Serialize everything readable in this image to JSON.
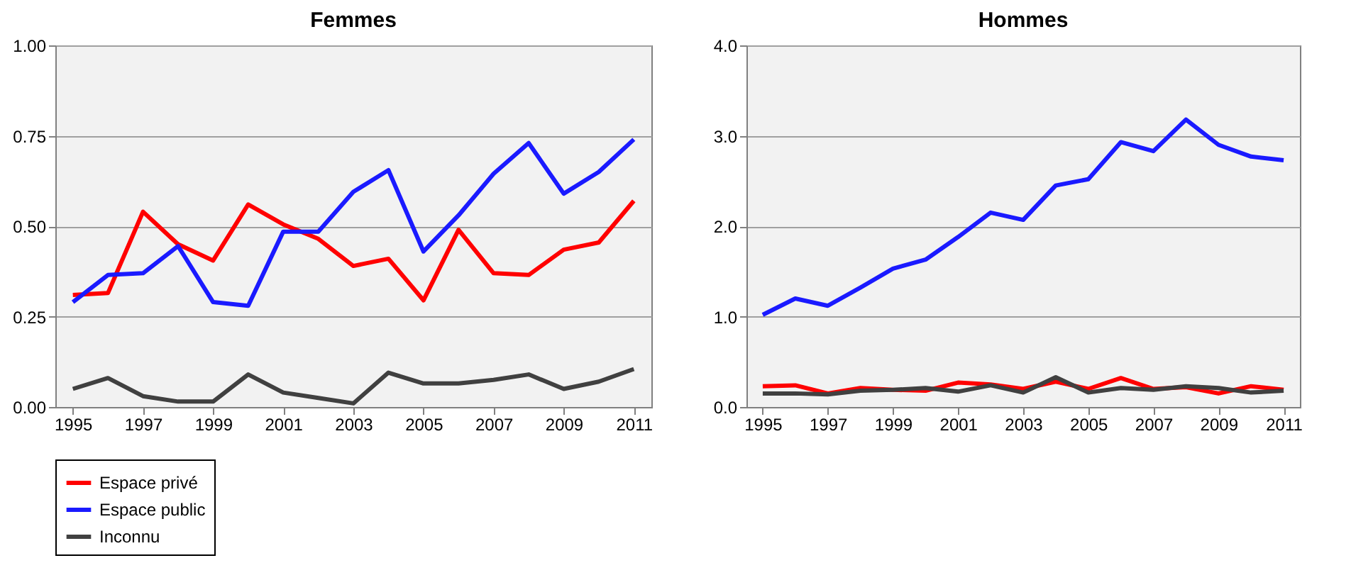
{
  "chart_data": [
    {
      "type": "line",
      "title": "Femmes",
      "x": [
        1995,
        1996,
        1997,
        1998,
        1999,
        2000,
        2001,
        2002,
        2003,
        2004,
        2005,
        2006,
        2007,
        2008,
        2009,
        2010,
        2011
      ],
      "xlim": [
        1994.5,
        2011.5
      ],
      "xticks": [
        1995,
        1997,
        1999,
        2001,
        2003,
        2005,
        2007,
        2009,
        2011
      ],
      "ylim": [
        0,
        1
      ],
      "yticks": [
        {
          "value": 0,
          "label": "0.00"
        },
        {
          "value": 0.25,
          "label": "0.25"
        },
        {
          "value": 0.5,
          "label": "0.50"
        },
        {
          "value": 0.75,
          "label": "0.75"
        },
        {
          "value": 1,
          "label": "1.00"
        }
      ],
      "grid": "y",
      "legend": "bottom",
      "series": [
        {
          "name": "Espace privé",
          "color": "#ff0000",
          "values": [
            0.31,
            0.315,
            0.54,
            0.45,
            0.405,
            0.56,
            0.505,
            0.465,
            0.39,
            0.41,
            0.295,
            0.49,
            0.37,
            0.365,
            0.435,
            0.455,
            0.57
          ]
        },
        {
          "name": "Espace public",
          "color": "#1a1aff",
          "values": [
            0.29,
            0.365,
            0.37,
            0.445,
            0.29,
            0.28,
            0.485,
            0.485,
            0.595,
            0.655,
            0.43,
            0.53,
            0.645,
            0.73,
            0.59,
            0.65,
            0.74
          ]
        },
        {
          "name": "Inconnu",
          "color": "#404040",
          "values": [
            0.05,
            0.08,
            0.03,
            0.015,
            0.015,
            0.09,
            0.04,
            0.025,
            0.01,
            0.095,
            0.065,
            0.065,
            0.075,
            0.09,
            0.05,
            0.07,
            0.105
          ]
        }
      ]
    },
    {
      "type": "line",
      "title": "Hommes",
      "x": [
        1995,
        1996,
        1997,
        1998,
        1999,
        2000,
        2001,
        2002,
        2003,
        2004,
        2005,
        2006,
        2007,
        2008,
        2009,
        2010,
        2011
      ],
      "xlim": [
        1994.5,
        2011.5
      ],
      "xticks": [
        1995,
        1997,
        1999,
        2001,
        2003,
        2005,
        2007,
        2009,
        2011
      ],
      "ylim": [
        0,
        4
      ],
      "yticks": [
        {
          "value": 0,
          "label": "0.0"
        },
        {
          "value": 1,
          "label": "1.0"
        },
        {
          "value": 2,
          "label": "2.0"
        },
        {
          "value": 3,
          "label": "3.0"
        },
        {
          "value": 4,
          "label": "4.0"
        }
      ],
      "grid": "y",
      "series": [
        {
          "color": "#ff0000",
          "values": [
            0.23,
            0.24,
            0.15,
            0.21,
            0.19,
            0.18,
            0.27,
            0.25,
            0.2,
            0.28,
            0.2,
            0.32,
            0.2,
            0.22,
            0.15,
            0.23,
            0.19
          ]
        },
        {
          "color": "#1a1aff",
          "values": [
            1.02,
            1.2,
            1.12,
            1.32,
            1.53,
            1.63,
            1.88,
            2.15,
            2.07,
            2.45,
            2.52,
            2.93,
            2.83,
            3.18,
            2.9,
            2.77,
            2.73
          ]
        },
        {
          "color": "#404040",
          "values": [
            0.15,
            0.15,
            0.14,
            0.18,
            0.19,
            0.21,
            0.17,
            0.24,
            0.16,
            0.33,
            0.16,
            0.21,
            0.19,
            0.23,
            0.21,
            0.16,
            0.18
          ]
        }
      ]
    }
  ]
}
